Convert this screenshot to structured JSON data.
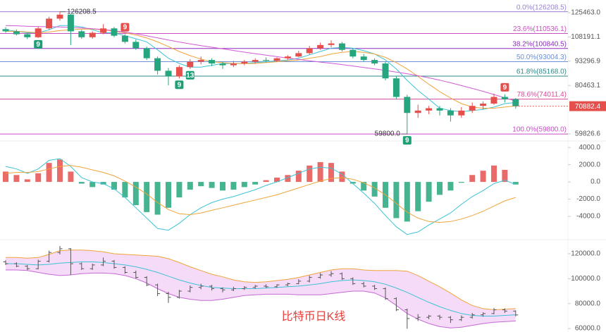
{
  "chart_data": [
    {
      "type": "candlestick",
      "ylog": true,
      "ylim": [
        57300,
        135600
      ],
      "yticks": [
        {
          "value": 125463,
          "label": "125463.0"
        },
        {
          "value": 108191.1,
          "label": "108191.1"
        },
        {
          "value": 93296.9,
          "label": "93296.9"
        },
        {
          "value": 80463.1,
          "label": "80463.1"
        },
        {
          "value": 59826.6,
          "label": "59826.6"
        }
      ],
      "up_color": "#e5504d",
      "down_color": "#26a67e",
      "candles": {
        "open": [
          113500,
          112000,
          110000,
          108000,
          114000,
          121000,
          124000,
          112000,
          108000,
          111000,
          114000,
          109000,
          105000,
          101000,
          95000,
          88000,
          85000,
          90000,
          93000,
          94000,
          92000,
          91000,
          92000,
          93000,
          94000,
          93500,
          95000,
          96000,
          98000,
          101000,
          103000,
          104000,
          100000,
          96000,
          94000,
          92000,
          84000,
          75000,
          68000,
          69000,
          70000,
          69000,
          67000,
          69000,
          71000,
          72000,
          75000,
          74000
        ],
        "high": [
          114800,
          113200,
          111000,
          115200,
          122500,
          126208.5,
          124500,
          113000,
          112000,
          117000,
          115000,
          110000,
          106500,
          102000,
          96000,
          89500,
          91000,
          94500,
          96000,
          95000,
          93000,
          93500,
          94000,
          95000,
          95500,
          95500,
          96800,
          99500,
          102500,
          104500,
          106000,
          105000,
          101000,
          97500,
          95000,
          93000,
          85000,
          76000,
          71500,
          71000,
          71000,
          70000,
          70500,
          72500,
          73000,
          76500,
          76200,
          74500
        ],
        "low": [
          111000,
          109200,
          106800,
          107500,
          113000,
          119500,
          103000,
          107000,
          107000,
          110000,
          108000,
          104000,
          100000,
          94000,
          86000,
          80500,
          84000,
          89000,
          91500,
          90500,
          89000,
          90000,
          91000,
          92000,
          92500,
          92800,
          94000,
          95500,
          97000,
          100000,
          101500,
          99000,
          95000,
          93000,
          91000,
          83000,
          74000,
          59800,
          66000,
          67500,
          67000,
          64500,
          66000,
          68000,
          69500,
          71500,
          72500,
          69800
        ],
        "close": [
          112000,
          110000,
          108000,
          114000,
          121000,
          124000,
          112000,
          108000,
          111000,
          114000,
          109000,
          105000,
          101000,
          95000,
          88000,
          85000,
          90000,
          93000,
          94000,
          92000,
          91000,
          92000,
          93000,
          94000,
          93500,
          95000,
          96000,
          98000,
          101000,
          103000,
          104000,
          100000,
          96000,
          94000,
          92000,
          84000,
          75000,
          68000,
          69000,
          70000,
          69000,
          67000,
          69000,
          71000,
          72000,
          75000,
          74000,
          70882.4
        ]
      },
      "lines": [
        {
          "color": "#3cc3d6",
          "values": [
            113000,
            112000,
            111000,
            111000,
            113000,
            116000,
            116000,
            115000,
            113000,
            111000,
            111000,
            109000,
            107000,
            105000,
            100000,
            95000,
            92000,
            90000,
            90000,
            91000,
            92000,
            92000,
            92000,
            92500,
            93000,
            93500,
            94000,
            95000,
            97000,
            99000,
            101000,
            101500,
            101000,
            99500,
            97500,
            94000,
            89000,
            83000,
            78000,
            74000,
            70000,
            69000,
            68500,
            69000,
            69500,
            70500,
            72000,
            72500
          ]
        },
        {
          "color": "#f0a43a",
          "values": [
            112000,
            112000,
            111500,
            111000,
            111500,
            112500,
            113000,
            113500,
            113500,
            113000,
            112000,
            111000,
            109500,
            107500,
            105000,
            102000,
            99000,
            96500,
            94500,
            93000,
            92500,
            92000,
            92000,
            92000,
            92500,
            93000,
            93500,
            94000,
            95000,
            96000,
            97500,
            98500,
            99000,
            98500,
            97500,
            95500,
            92500,
            89000,
            85000,
            81000,
            77500,
            74500,
            72000,
            70500,
            70000,
            70000,
            70500,
            71000
          ]
        },
        {
          "color": "#d05ad6",
          "values": [
            116000,
            115800,
            115500,
            115300,
            115200,
            115000,
            114700,
            114300,
            113800,
            113200,
            112400,
            111400,
            110300,
            109000,
            107600,
            106200,
            104900,
            103700,
            102600,
            101600,
            100600,
            99600,
            98600,
            97700,
            96800,
            95900,
            95100,
            94300,
            93500,
            92800,
            92100,
            91400,
            90600,
            89800,
            89000,
            88200,
            87300,
            86400,
            85400,
            84300,
            83100,
            81800,
            80400,
            79000,
            77600,
            76100,
            74600,
            73100
          ]
        }
      ],
      "fib_levels": [
        {
          "value": 126208.5,
          "label": "0.0%(126208.5)",
          "color": "#9a7fd1"
        },
        {
          "value": 110536.1,
          "label": "23.6%(110536.1)",
          "color": "#c850c0"
        },
        {
          "value": 100840.5,
          "label": "38.2%(100840.5)",
          "color": "#8e2bc0"
        },
        {
          "value": 93004.3,
          "label": "50.0%(93004.3)",
          "color": "#6c8fd8"
        },
        {
          "value": 85168,
          "label": "61.8%(85168.0)",
          "color": "#2b8a8a"
        },
        {
          "value": 74011.4,
          "label": "78.6%(74011.4)",
          "color": "#d84a9a"
        },
        {
          "value": 59800,
          "label": "100.0%(59800.0)",
          "color": "#c94ac9"
        }
      ],
      "high_annotation": {
        "value": 126208.5,
        "label": "126208.5"
      },
      "low_annotation": {
        "value": 59800,
        "label": "59800.0"
      },
      "markers": [
        "9",
        "9",
        "9",
        "13",
        "9",
        "9"
      ],
      "last_price_color": "#e5504d"
    },
    {
      "type": "macd",
      "ylim": [
        -6700,
        4750
      ],
      "yticks": [
        {
          "value": 4000,
          "label": "4000.0"
        },
        {
          "value": 2000,
          "label": "2000.0"
        },
        {
          "value": 0,
          "label": "0.0"
        },
        {
          "value": -2000,
          "label": "-2000.0"
        },
        {
          "value": -4000,
          "label": "-4000.0"
        }
      ],
      "up_color": "#e5504d",
      "down_color": "#26a67e",
      "histogram": [
        1200,
        800,
        300,
        1000,
        2200,
        2600,
        1200,
        -200,
        -600,
        -300,
        -900,
        -1800,
        -2700,
        -3500,
        -3800,
        -3000,
        -1800,
        -900,
        -500,
        -700,
        -1000,
        -900,
        -600,
        -300,
        200,
        500,
        800,
        1300,
        1900,
        2300,
        2200,
        1200,
        -200,
        -1000,
        -1700,
        -3000,
        -4200,
        -4600,
        -3400,
        -2300,
        -1500,
        -1000,
        -100,
        800,
        1300,
        1900,
        1400,
        -300
      ],
      "lines": [
        {
          "color": "#3cc3d6",
          "values": [
            1800,
            1500,
            1000,
            1500,
            2500,
            2700,
            1800,
            500,
            0,
            -200,
            -800,
            -1800,
            -3000,
            -4200,
            -5400,
            -5600,
            -4800,
            -3800,
            -3000,
            -2400,
            -2000,
            -1700,
            -1300,
            -900,
            -400,
            0,
            500,
            1000,
            1500,
            1700,
            1600,
            900,
            -200,
            -1300,
            -2500,
            -3900,
            -5200,
            -6100,
            -5800,
            -5000,
            -4300,
            -3600,
            -2600,
            -1700,
            -1000,
            -200,
            200,
            -300
          ]
        },
        {
          "color": "#f0a43a",
          "values": [
            1000,
            1100,
            1100,
            1200,
            1500,
            1800,
            1900,
            1700,
            1400,
            1100,
            700,
            100,
            -600,
            -1400,
            -2400,
            -3200,
            -3700,
            -3800,
            -3600,
            -3300,
            -3000,
            -2700,
            -2400,
            -2100,
            -1800,
            -1500,
            -1100,
            -700,
            -300,
            100,
            400,
            500,
            300,
            -100,
            -700,
            -1500,
            -2500,
            -3500,
            -4200,
            -4600,
            -4700,
            -4600,
            -4300,
            -3900,
            -3400,
            -2800,
            -2200,
            -1800
          ]
        }
      ]
    },
    {
      "type": "bollinger",
      "title": "比特币日K线",
      "title_color": "#e5403c",
      "ylim": [
        57200,
        131300
      ],
      "yticks": [
        {
          "value": 120000,
          "label": "120000.0"
        },
        {
          "value": 100000,
          "label": "100000.0"
        },
        {
          "value": 80000,
          "label": "80000.0"
        },
        {
          "value": 60000,
          "label": "60000.0"
        }
      ],
      "band_color": "#f2d2f6",
      "bar_color": "#555555",
      "upper": {
        "color": "#f0a43a",
        "values": [
          117000,
          117000,
          116500,
          117000,
          119500,
          122500,
          123000,
          123000,
          122500,
          121500,
          120000,
          119500,
          119000,
          118500,
          118000,
          116000,
          113000,
          109500,
          106500,
          103500,
          101500,
          99000,
          97500,
          97000,
          97500,
          98500,
          99500,
          101000,
          103000,
          105000,
          107000,
          108000,
          108000,
          107000,
          106500,
          106500,
          106500,
          106000,
          102500,
          98000,
          93500,
          88500,
          83000,
          78500,
          76000,
          75000,
          75500,
          76000
        ]
      },
      "mid": {
        "color": "#3cc3d6",
        "values": [
          112000,
          112000,
          111500,
          111000,
          111500,
          112500,
          113000,
          113500,
          113500,
          113000,
          112000,
          111000,
          109500,
          107500,
          105000,
          102000,
          99000,
          96500,
          94500,
          93000,
          92500,
          92000,
          92000,
          92000,
          92500,
          93000,
          93500,
          94000,
          95000,
          96000,
          97500,
          98500,
          99000,
          98500,
          97500,
          95500,
          92500,
          89000,
          85000,
          81000,
          77500,
          74500,
          72000,
          70500,
          70000,
          70000,
          70500,
          71000
        ]
      },
      "lower": {
        "color": "#c46ad4",
        "values": [
          107000,
          107000,
          106500,
          105000,
          103500,
          102500,
          103000,
          104000,
          104500,
          104500,
          104000,
          102500,
          100000,
          96500,
          92000,
          88000,
          85000,
          83500,
          82500,
          82500,
          83500,
          85000,
          86500,
          87000,
          87500,
          87500,
          87500,
          87000,
          87000,
          87000,
          88000,
          89000,
          90000,
          90000,
          88500,
          84500,
          78500,
          72000,
          67500,
          64000,
          61500,
          60500,
          61000,
          62500,
          64000,
          65000,
          65500,
          66000
        ]
      }
    }
  ]
}
